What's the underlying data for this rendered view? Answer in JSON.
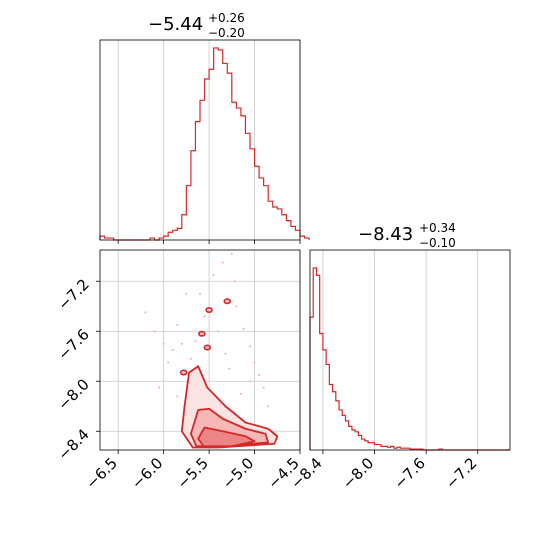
{
  "chart_data": [
    {
      "panel": "marginal-x",
      "type": "histogram",
      "title_main": "−5.44",
      "title_sup": "+0.26",
      "title_sub": "−0.20",
      "xlim": [
        -6.7,
        -4.5
      ],
      "bin_edges_start": -6.7,
      "bin_width": 0.05,
      "heights": [
        0.02,
        0.01,
        0.01,
        0.0,
        0.0,
        0.0,
        0.0,
        0.0,
        0.0,
        0.0,
        0.0,
        0.01,
        0.0,
        0.01,
        0.02,
        0.04,
        0.05,
        0.06,
        0.13,
        0.28,
        0.46,
        0.61,
        0.72,
        0.83,
        0.88,
        0.99,
        0.98,
        0.91,
        0.86,
        0.71,
        0.68,
        0.64,
        0.55,
        0.47,
        0.38,
        0.32,
        0.28,
        0.2,
        0.17,
        0.16,
        0.13,
        0.1,
        0.07,
        0.05,
        0.02,
        0.01
      ],
      "xticks": [
        -6.5,
        -6.0,
        -5.5,
        -5.0,
        -4.5
      ],
      "grid": true,
      "color": "#d62728"
    },
    {
      "panel": "marginal-y",
      "type": "histogram",
      "title_main": "−8.43",
      "title_sup": "+0.34",
      "title_sub": "−0.10",
      "xlim": [
        -8.5,
        -6.95
      ],
      "bin_edges_start": -8.5,
      "bin_width": 0.025,
      "heights": [
        0.73,
        1.0,
        0.96,
        0.64,
        0.55,
        0.47,
        0.36,
        0.32,
        0.27,
        0.22,
        0.19,
        0.16,
        0.13,
        0.11,
        0.1,
        0.08,
        0.06,
        0.05,
        0.04,
        0.04,
        0.03,
        0.03,
        0.02,
        0.02,
        0.015,
        0.02,
        0.01,
        0.015,
        0.01,
        0.01,
        0.01,
        0.005,
        0.005,
        0.005,
        0.005,
        0.0,
        0.0,
        0.0,
        0.0,
        0.0,
        0.005,
        0.0,
        0.0,
        0.0,
        0.0,
        0.0,
        0.0,
        0.0,
        0.0,
        0.0,
        0.0,
        0.0,
        0.0,
        0.0,
        0.0,
        0.0,
        0.0,
        0.0,
        0.0,
        0.0,
        0.0,
        0.0
      ],
      "xticks": [
        -8.4,
        -8.0,
        -7.6,
        -7.2
      ],
      "xtick_labels": [
        "−8.4",
        "−8.0",
        "−7.6",
        "−7.2"
      ],
      "grid": true,
      "color": "#d62728"
    },
    {
      "panel": "joint",
      "type": "contour",
      "xlim": [
        -6.7,
        -4.5
      ],
      "ylim": [
        -8.55,
        -6.95
      ],
      "xticks": [
        -6.5,
        -6.0,
        -5.5,
        -5.0,
        -4.5
      ],
      "xtick_labels": [
        "−6.5",
        "−6.0",
        "−5.5",
        "−5.0",
        "−4.5"
      ],
      "yticks": [
        -8.4,
        -8.0,
        -7.6,
        -7.2
      ],
      "ytick_labels": [
        "−8.4",
        "−8.0",
        "−7.6",
        "−7.2"
      ],
      "grid": true,
      "color": "#d62728",
      "contour_levels": [
        {
          "level": "outer",
          "fill": "#fbe3e3",
          "points": [
            [
              -5.72,
              -7.93
            ],
            [
              -5.62,
              -7.88
            ],
            [
              -5.52,
              -8.05
            ],
            [
              -5.32,
              -8.2
            ],
            [
              -5.1,
              -8.33
            ],
            [
              -4.85,
              -8.38
            ],
            [
              -4.75,
              -8.44
            ],
            [
              -4.78,
              -8.5
            ],
            [
              -5.4,
              -8.53
            ],
            [
              -5.68,
              -8.53
            ],
            [
              -5.8,
              -8.4
            ],
            [
              -5.77,
              -8.2
            ]
          ]
        },
        {
          "level": "mid",
          "fill": "#f6b7b7",
          "points": [
            [
              -5.62,
              -8.23
            ],
            [
              -5.5,
              -8.22
            ],
            [
              -5.35,
              -8.3
            ],
            [
              -5.1,
              -8.38
            ],
            [
              -4.88,
              -8.42
            ],
            [
              -4.85,
              -8.49
            ],
            [
              -5.4,
              -8.52
            ],
            [
              -5.64,
              -8.52
            ],
            [
              -5.7,
              -8.42
            ]
          ]
        },
        {
          "level": "inner",
          "fill": "#ec8585",
          "points": [
            [
              -5.55,
              -8.37
            ],
            [
              -5.35,
              -8.4
            ],
            [
              -5.1,
              -8.44
            ],
            [
              -5.0,
              -8.48
            ],
            [
              -5.25,
              -8.52
            ],
            [
              -5.56,
              -8.52
            ],
            [
              -5.62,
              -8.46
            ]
          ]
        }
      ],
      "islands": [
        [
          -5.5,
          -7.43
        ],
        [
          -5.58,
          -7.62
        ],
        [
          -5.52,
          -7.73
        ],
        [
          -5.3,
          -7.36
        ],
        [
          -5.78,
          -7.93
        ]
      ],
      "scatter_points": [
        [
          -6.2,
          -7.45
        ],
        [
          -6.0,
          -7.7
        ],
        [
          -5.95,
          -7.85
        ],
        [
          -5.9,
          -7.75
        ],
        [
          -5.85,
          -7.55
        ],
        [
          -5.75,
          -7.3
        ],
        [
          -5.45,
          -7.15
        ],
        [
          -5.35,
          -7.05
        ],
        [
          -5.25,
          -6.98
        ],
        [
          -5.2,
          -7.4
        ],
        [
          -5.12,
          -7.58
        ],
        [
          -5.05,
          -7.72
        ],
        [
          -5.0,
          -7.85
        ],
        [
          -4.95,
          -7.95
        ],
        [
          -4.9,
          -8.05
        ],
        [
          -5.28,
          -7.9
        ],
        [
          -5.4,
          -7.6
        ],
        [
          -5.55,
          -7.48
        ],
        [
          -5.65,
          -7.68
        ],
        [
          -5.7,
          -7.82
        ],
        [
          -5.15,
          -8.1
        ],
        [
          -4.85,
          -8.2
        ],
        [
          -5.05,
          -8.0
        ],
        [
          -5.6,
          -7.3
        ],
        [
          -5.8,
          -7.7
        ],
        [
          -6.05,
          -8.05
        ],
        [
          -5.85,
          -8.12
        ],
        [
          -6.1,
          -7.6
        ],
        [
          -5.32,
          -7.78
        ],
        [
          -5.22,
          -7.2
        ]
      ]
    }
  ]
}
